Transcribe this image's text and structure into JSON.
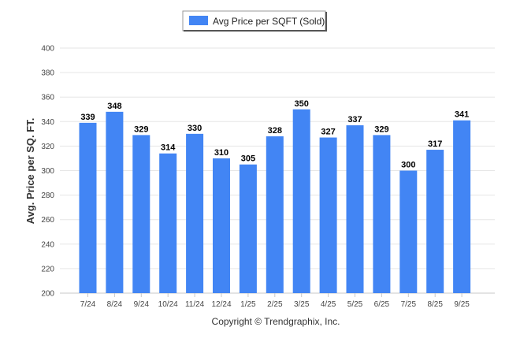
{
  "chart_data": {
    "type": "bar",
    "categories": [
      "7/24",
      "8/24",
      "9/24",
      "10/24",
      "11/24",
      "12/24",
      "1/25",
      "2/25",
      "3/25",
      "4/25",
      "5/25",
      "6/25",
      "7/25",
      "8/25",
      "9/25"
    ],
    "series": [
      {
        "name": "Avg Price per SQFT (Sold)",
        "values": [
          339,
          348,
          329,
          314,
          330,
          310,
          305,
          328,
          350,
          327,
          337,
          329,
          300,
          317,
          341
        ],
        "color": "#4285f4"
      }
    ],
    "ylabel": "Avg. Price per SQ. FT.",
    "xlabel": "",
    "ylim": [
      200,
      400
    ],
    "yticks": [
      200,
      220,
      240,
      260,
      280,
      300,
      320,
      340,
      360,
      380,
      400
    ],
    "grid": true,
    "legend": "top-center",
    "data_labels": true
  },
  "footer": {
    "credit": "Copyright © Trendgraphix, Inc."
  }
}
